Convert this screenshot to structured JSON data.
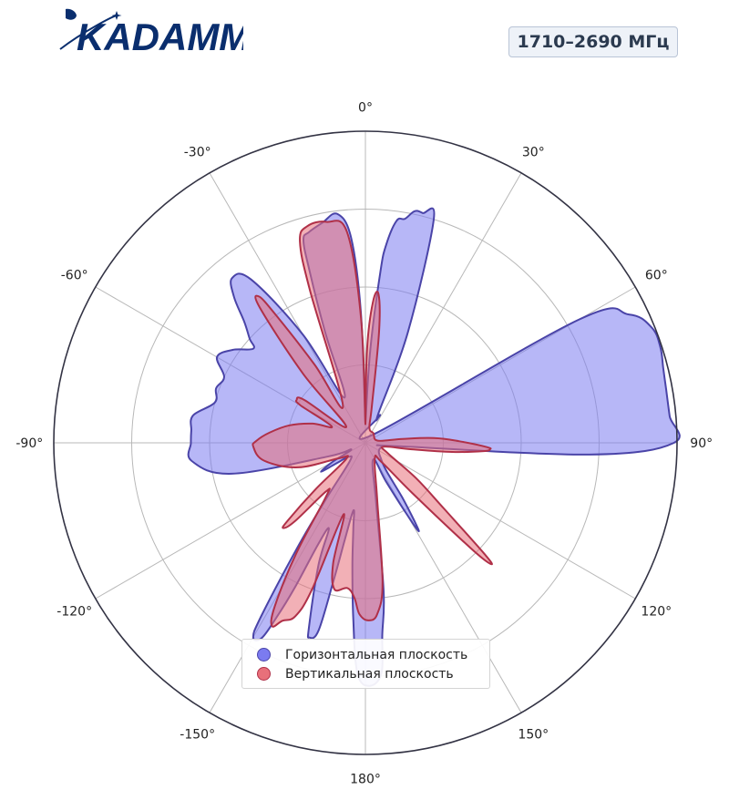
{
  "brand": {
    "name": "KADAMM",
    "color": "#0a2e6e"
  },
  "badge": {
    "text": "1710–2690 МГц"
  },
  "chart_data": {
    "type": "polar-area",
    "theta_direction": "clockwise",
    "theta_zero": "top",
    "theta_labels": [
      "0°",
      "30°",
      "60°",
      "90°",
      "120°",
      "150°",
      "180°",
      "-150°",
      "-120°",
      "-90°",
      "-60°",
      "-30°"
    ],
    "theta_label_angles": [
      0,
      30,
      60,
      90,
      120,
      150,
      180,
      210,
      240,
      270,
      300,
      330
    ],
    "r_range": [
      0,
      1
    ],
    "r_grid": [
      0.25,
      0.5,
      0.75,
      1.0
    ],
    "radial_labels_shown": false,
    "grid": true,
    "legend_placement": "bottom-center",
    "series": [
      {
        "name": "Горизонтальная плоскость",
        "fill": "#7b7bf0",
        "stroke": "#4a44a8",
        "points": [
          [
            0,
            0.06
          ],
          [
            3,
            0.3
          ],
          [
            5,
            0.55
          ],
          [
            6,
            0.64
          ],
          [
            8,
            0.72
          ],
          [
            10,
            0.73
          ],
          [
            12,
            0.76
          ],
          [
            14,
            0.76
          ],
          [
            17,
            0.75
          ],
          [
            21,
            0.38
          ],
          [
            24,
            0.1
          ],
          [
            28,
            0.1
          ],
          [
            45,
            0.04
          ],
          [
            60,
            0.79
          ],
          [
            64,
            0.94
          ],
          [
            68,
            0.99
          ],
          [
            72,
            0.995
          ],
          [
            76,
            0.985
          ],
          [
            80,
            0.98
          ],
          [
            85,
            0.98
          ],
          [
            90,
            0.99
          ],
          [
            93,
            0.72
          ],
          [
            96,
            0.1
          ],
          [
            100,
            0.06
          ],
          [
            120,
            0.05
          ],
          [
            135,
            0.07
          ],
          [
            143,
            0.11
          ],
          [
            146,
            0.21
          ],
          [
            148,
            0.3
          ],
          [
            149,
            0.33
          ],
          [
            150,
            0.26
          ],
          [
            152,
            0.14
          ],
          [
            156,
            0.06
          ],
          [
            170,
            0.2
          ],
          [
            173,
            0.48
          ],
          [
            175,
            0.62
          ],
          [
            176,
            0.74
          ],
          [
            179,
            0.78
          ],
          [
            182,
            0.74
          ],
          [
            184,
            0.56
          ],
          [
            186,
            0.4
          ],
          [
            188,
            0.28
          ],
          [
            190,
            0.22
          ],
          [
            192,
            0.32
          ],
          [
            193,
            0.45
          ],
          [
            194,
            0.62
          ],
          [
            196,
            0.65
          ],
          [
            197,
            0.62
          ],
          [
            201,
            0.42
          ],
          [
            203,
            0.3
          ],
          [
            205,
            0.36
          ],
          [
            206,
            0.52
          ],
          [
            207,
            0.63
          ],
          [
            208,
            0.71
          ],
          [
            210,
            0.72
          ],
          [
            211,
            0.65
          ],
          [
            213,
            0.4
          ],
          [
            215,
            0.22
          ],
          [
            220,
            0.08
          ],
          [
            230,
            0.07
          ],
          [
            235,
            0.12
          ],
          [
            237,
            0.17
          ],
          [
            240,
            0.12
          ],
          [
            245,
            0.05
          ],
          [
            250,
            0.13
          ],
          [
            257,
            0.44
          ],
          [
            264,
            0.56
          ],
          [
            270,
            0.56
          ],
          [
            274,
            0.56
          ],
          [
            279,
            0.56
          ],
          [
            285,
            0.5
          ],
          [
            290,
            0.51
          ],
          [
            295,
            0.5
          ],
          [
            300,
            0.55
          ],
          [
            305,
            0.52
          ],
          [
            310,
            0.47
          ],
          [
            312,
            0.5
          ],
          [
            315,
            0.55
          ],
          [
            318,
            0.63
          ],
          [
            321,
            0.68
          ],
          [
            325,
            0.64
          ],
          [
            330,
            0.4
          ],
          [
            335,
            0.16
          ],
          [
            340,
            0.38
          ],
          [
            342,
            0.58
          ],
          [
            343,
            0.68
          ],
          [
            345,
            0.7
          ],
          [
            349,
            0.72
          ],
          [
            353,
            0.74
          ],
          [
            356,
            0.66
          ],
          [
            358,
            0.42
          ],
          [
            360,
            0.06
          ]
        ]
      },
      {
        "name": "Вертикальная плоскость",
        "fill": "#e8707a",
        "stroke": "#b03048",
        "points": [
          [
            0,
            0.06
          ],
          [
            1,
            0.3
          ],
          [
            3,
            0.45
          ],
          [
            5,
            0.48
          ],
          [
            7,
            0.36
          ],
          [
            10,
            0.12
          ],
          [
            15,
            0.05
          ],
          [
            40,
            0.04
          ],
          [
            80,
            0.04
          ],
          [
            84,
            0.12
          ],
          [
            86,
            0.22
          ],
          [
            89,
            0.3
          ],
          [
            92,
            0.39
          ],
          [
            93,
            0.4
          ],
          [
            94,
            0.38
          ],
          [
            96,
            0.28
          ],
          [
            98,
            0.15
          ],
          [
            102,
            0.06
          ],
          [
            115,
            0.08
          ],
          [
            125,
            0.2
          ],
          [
            130,
            0.33
          ],
          [
            133,
            0.52
          ],
          [
            134,
            0.56
          ],
          [
            135,
            0.48
          ],
          [
            137,
            0.22
          ],
          [
            140,
            0.08
          ],
          [
            150,
            0.06
          ],
          [
            168,
            0.18
          ],
          [
            173,
            0.45
          ],
          [
            176,
            0.55
          ],
          [
            179,
            0.57
          ],
          [
            182,
            0.55
          ],
          [
            184,
            0.5
          ],
          [
            187,
            0.47
          ],
          [
            192,
            0.48
          ],
          [
            195,
            0.4
          ],
          [
            197,
            0.24
          ],
          [
            200,
            0.5
          ],
          [
            202,
            0.6
          ],
          [
            205,
            0.63
          ],
          [
            207,
            0.66
          ],
          [
            209,
            0.6
          ],
          [
            212,
            0.42
          ],
          [
            216,
            0.22
          ],
          [
            219,
            0.2
          ],
          [
            222,
            0.34
          ],
          [
            224,
            0.38
          ],
          [
            225,
            0.35
          ],
          [
            227,
            0.22
          ],
          [
            230,
            0.08
          ],
          [
            240,
            0.1
          ],
          [
            250,
            0.23
          ],
          [
            260,
            0.33
          ],
          [
            268,
            0.36
          ],
          [
            271,
            0.35
          ],
          [
            276,
            0.31
          ],
          [
            283,
            0.25
          ],
          [
            290,
            0.18
          ],
          [
            296,
            0.12
          ],
          [
            300,
            0.24
          ],
          [
            302,
            0.26
          ],
          [
            305,
            0.24
          ],
          [
            310,
            0.08
          ],
          [
            318,
            0.3
          ],
          [
            322,
            0.55
          ],
          [
            324,
            0.58
          ],
          [
            325,
            0.5
          ],
          [
            327,
            0.3
          ],
          [
            329,
            0.14
          ],
          [
            340,
            0.52
          ],
          [
            342,
            0.68
          ],
          [
            345,
            0.72
          ],
          [
            350,
            0.72
          ],
          [
            355,
            0.68
          ],
          [
            358,
            0.4
          ],
          [
            360,
            0.06
          ]
        ]
      }
    ]
  }
}
